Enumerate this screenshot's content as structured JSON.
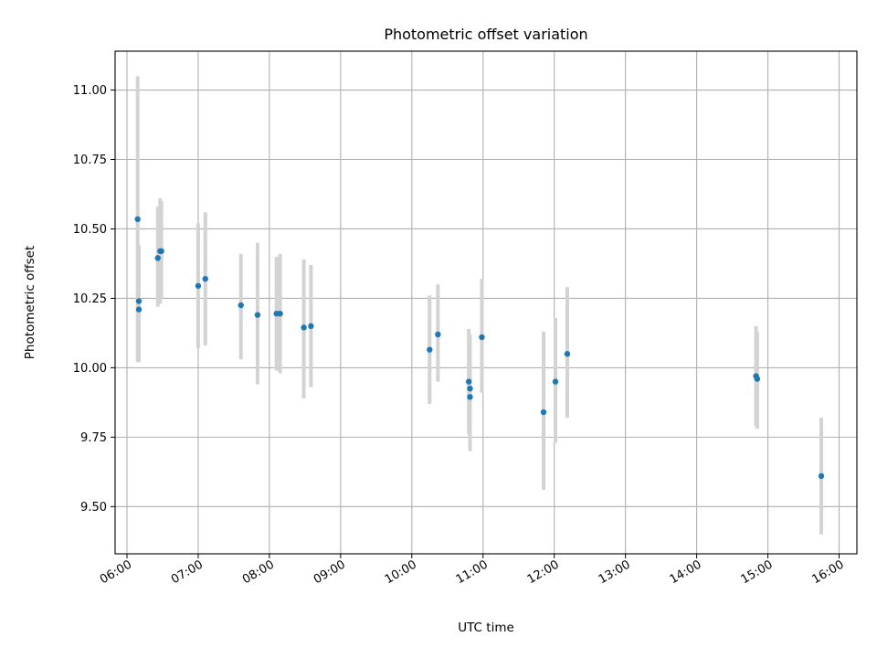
{
  "chart_data": {
    "type": "scatter",
    "title": "Photometric offset variation",
    "xlabel": "UTC time",
    "ylabel": "Photometric offset",
    "grid": true,
    "xlim": [
      "05:50",
      "16:15"
    ],
    "ylim": [
      9.33,
      11.14
    ],
    "x_ticks": [
      "06:00",
      "07:00",
      "08:00",
      "09:00",
      "10:00",
      "11:00",
      "12:00",
      "13:00",
      "14:00",
      "15:00",
      "16:00"
    ],
    "y_ticks": [
      "9.50",
      "9.75",
      "10.00",
      "10.25",
      "10.50",
      "10.75",
      "11.00"
    ],
    "point_color": "#1f77b4",
    "errorbar_color": "#d3d3d3",
    "points": [
      {
        "x": "06:09",
        "y": 10.535,
        "err_low": 10.02,
        "err_high": 11.05
      },
      {
        "x": "06:10",
        "y": 10.24,
        "err_low": 10.03,
        "err_high": 10.44
      },
      {
        "x": "06:10",
        "y": 10.21,
        "err_low": 10.02,
        "err_high": 10.44
      },
      {
        "x": "06:26",
        "y": 10.395,
        "err_low": 10.22,
        "err_high": 10.58
      },
      {
        "x": "06:28",
        "y": 10.42,
        "err_low": 10.23,
        "err_high": 10.61
      },
      {
        "x": "06:29",
        "y": 10.42,
        "err_low": 10.25,
        "err_high": 10.6
      },
      {
        "x": "07:00",
        "y": 10.295,
        "err_low": 10.07,
        "err_high": 10.52
      },
      {
        "x": "07:06",
        "y": 10.32,
        "err_low": 10.08,
        "err_high": 10.56
      },
      {
        "x": "07:36",
        "y": 10.225,
        "err_low": 10.03,
        "err_high": 10.41
      },
      {
        "x": "07:50",
        "y": 10.19,
        "err_low": 9.94,
        "err_high": 10.45
      },
      {
        "x": "08:06",
        "y": 10.195,
        "err_low": 9.99,
        "err_high": 10.4
      },
      {
        "x": "08:09",
        "y": 10.195,
        "err_low": 9.98,
        "err_high": 10.41
      },
      {
        "x": "08:29",
        "y": 10.145,
        "err_low": 9.89,
        "err_high": 10.39
      },
      {
        "x": "08:35",
        "y": 10.15,
        "err_low": 9.93,
        "err_high": 10.37
      },
      {
        "x": "10:15",
        "y": 10.065,
        "err_low": 9.87,
        "err_high": 10.26
      },
      {
        "x": "10:22",
        "y": 10.12,
        "err_low": 9.95,
        "err_high": 10.3
      },
      {
        "x": "10:48",
        "y": 9.95,
        "err_low": 9.76,
        "err_high": 10.14
      },
      {
        "x": "10:49",
        "y": 9.925,
        "err_low": 9.73,
        "err_high": 10.12
      },
      {
        "x": "10:49",
        "y": 9.895,
        "err_low": 9.7,
        "err_high": 10.09
      },
      {
        "x": "10:59",
        "y": 10.11,
        "err_low": 9.91,
        "err_high": 10.32
      },
      {
        "x": "11:51",
        "y": 9.84,
        "err_low": 9.56,
        "err_high": 10.13
      },
      {
        "x": "12:01",
        "y": 9.95,
        "err_low": 9.73,
        "err_high": 10.18
      },
      {
        "x": "12:11",
        "y": 10.05,
        "err_low": 9.82,
        "err_high": 10.29
      },
      {
        "x": "14:50",
        "y": 9.97,
        "err_low": 9.79,
        "err_high": 10.15
      },
      {
        "x": "14:51",
        "y": 9.96,
        "err_low": 9.78,
        "err_high": 10.13
      },
      {
        "x": "15:45",
        "y": 9.61,
        "err_low": 9.4,
        "err_high": 9.82
      }
    ]
  }
}
